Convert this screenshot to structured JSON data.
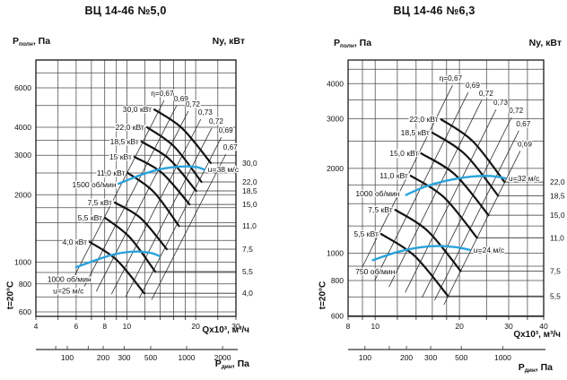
{
  "colors": {
    "curve_black": "#141414",
    "grid": "#4a4a4a",
    "border": "#1a1a1a",
    "fan_curve_blue": "#2aa2dc",
    "text": "#111111"
  },
  "charts": [
    {
      "title": "ВЦ 14-46 №5,0",
      "pressure_axis_label": {
        "base": "P",
        "sub": "полн",
        "rest": ", Па"
      },
      "power_axis_label": "Ny, кВт",
      "flow_axis_label": "Qx10³, м³/ч",
      "pdyn_axis_label": {
        "base": "P",
        "sub": "дин",
        "rest": ", Па"
      },
      "temperature_label": "t=20°C",
      "chart_data": {
        "type": "line",
        "x_name": "Q",
        "x_unit": "x10³ м³/ч",
        "y_name": "P полн",
        "y_unit": "Па",
        "xlim": [
          4,
          30
        ],
        "ylim": [
          573,
          7980
        ],
        "x_gridlines": [
          4,
          5,
          6,
          7,
          8,
          9,
          10,
          12,
          14,
          16,
          18,
          20,
          25,
          30
        ],
        "x_tick_labels": [
          4,
          6,
          8,
          10,
          20,
          30
        ],
        "y_gridlines": [
          600,
          700,
          800,
          900,
          1000,
          1250,
          1500,
          1750,
          2000,
          2500,
          3000,
          3500,
          4000,
          5000,
          6000,
          7000,
          8000
        ],
        "y_tick_labels": [
          600,
          800,
          1000,
          2000,
          3000,
          4000,
          6000
        ],
        "efficiency_lines": [
          {
            "label": "η=0,67",
            "k": 24.9,
            "q_range": [
              5.77,
              14.55
            ]
          },
          {
            "label": "0,69",
            "k": 18.34,
            "q_range": [
              6.52,
              16.5
            ]
          },
          {
            "label": "0,72",
            "k": 13.7,
            "q_range": [
              7.35,
              18.57
            ]
          },
          {
            "label": "0,73",
            "k": 9.8,
            "q_range": [
              8.57,
              21.06
            ]
          },
          {
            "label": "0,72",
            "k": 7.18,
            "q_range": [
              9.87,
              23.5
            ]
          },
          {
            "label": "0,69",
            "k": 5.38,
            "q_range": [
              11.33,
              25.9
            ]
          },
          {
            "label": "0,67",
            "k": 4.13,
            "q_range": [
              12.83,
              27.1
            ]
          }
        ],
        "power_curves": [
          {
            "label": "30,0 кВт",
            "ny_label": "30,0",
            "points": [
              [
                13.2,
                4800
              ],
              [
                17.5,
                3950
              ],
              [
                23.3,
                2770
              ]
            ]
          },
          {
            "label": "22,0 кВт",
            "ny_label": "22,0",
            "points": [
              [
                12.25,
                4000
              ],
              [
                16.1,
                3280
              ],
              [
                21.2,
                2280
              ]
            ]
          },
          {
            "label": "18,5 кВт",
            "ny_label": "18,5",
            "points": [
              [
                11.6,
                3450
              ],
              [
                15.3,
                2890
              ],
              [
                20.1,
                2080
              ]
            ]
          },
          {
            "label": "15 кВт",
            "ny_label": "15,0",
            "points": [
              [
                10.8,
                2950
              ],
              [
                14.25,
                2500
              ],
              [
                18.8,
                1810
              ]
            ]
          },
          {
            "label": "11,0 кВт",
            "ny_label": "11,0",
            "points": [
              [
                10.1,
                2500
              ],
              [
                13.1,
                2060
              ],
              [
                16.9,
                1450
              ]
            ]
          },
          {
            "label": "7,5 кВт",
            "ny_label": "7,5",
            "points": [
              [
                8.86,
                1845
              ],
              [
                11.5,
                1570
              ],
              [
                14.95,
                1143
              ]
            ]
          },
          {
            "label": "5,5 кВт",
            "ny_label": "5,5",
            "points": [
              [
                8.02,
                1578
              ],
              [
                10.3,
                1290
              ],
              [
                13.3,
                908
              ]
            ]
          },
          {
            "label": "4,0 кВт",
            "ny_label": "4,0",
            "points": [
              [
                6.88,
                1231
              ],
              [
                9.05,
                1020
              ],
              [
                11.9,
                727
              ]
            ]
          }
        ],
        "fan_curves": [
          {
            "rpm_label": "1500 об/мин",
            "u_label": "u=38 м/с",
            "points": [
              [
                9.2,
                2240
              ],
              [
                11.5,
                2450
              ],
              [
                14,
                2600
              ],
              [
                17,
                2670
              ],
              [
                20,
                2660
              ],
              [
                21.8,
                2590
              ]
            ],
            "rpm_label_pos": [
              7.2,
              2220
            ],
            "u_label_pos": "end"
          },
          {
            "rpm_label": "1000 об/мин",
            "u_label": "u=25 м/с",
            "points": [
              [
                6.0,
                950
              ],
              [
                7.5,
                1030
              ],
              [
                9,
                1090
              ],
              [
                11,
                1115
              ],
              [
                12.7,
                1100
              ],
              [
                13.9,
                1065
              ]
            ],
            "rpm_label_pos": [
              5.6,
              840
            ],
            "u_label_pos": [
              5.55,
              745
            ]
          }
        ],
        "pdyn_axis": {
          "range": [
            54.6,
            2590
          ],
          "tick_labels": [
            100,
            200,
            300,
            500,
            1000,
            2000
          ],
          "minor_ticks": [
            80,
            150
          ]
        }
      }
    },
    {
      "title": "ВЦ 14-46 №6,3",
      "pressure_axis_label": {
        "base": "P",
        "sub": "полн",
        "rest": ", Па"
      },
      "power_axis_label": "Ny, кВт",
      "flow_axis_label": "Qx10³, м³/ч",
      "pdyn_axis_label": {
        "base": "P",
        "sub": "дин",
        "rest": ", Па"
      },
      "temperature_label": "t=20°C",
      "chart_data": {
        "type": "line",
        "x_name": "Q",
        "x_unit": "x10³ м³/ч",
        "y_name": "P полн",
        "y_unit": "Па",
        "xlim": [
          8,
          40
        ],
        "ylim": [
          597,
          4849
        ],
        "x_gridlines": [
          8,
          9,
          10,
          12,
          14,
          16,
          18,
          20,
          25,
          30,
          35,
          40
        ],
        "x_tick_labels": [
          8,
          10,
          20,
          30,
          40
        ],
        "y_gridlines": [
          600,
          700,
          800,
          900,
          1000,
          1250,
          1500,
          1750,
          2000,
          2500,
          3000,
          3500,
          4000,
          4500
        ],
        "y_tick_labels": [
          600,
          800,
          1000,
          2000,
          3000,
          4000
        ],
        "efficiency_lines": [
          {
            "label": "η=0,67",
            "k": 11.04,
            "q_range": [
              8.8,
              18.9
            ]
          },
          {
            "label": "0,69",
            "k": 8.06,
            "q_range": [
              9.96,
              21.5
            ]
          },
          {
            "label": "0,72",
            "k": 6.05,
            "q_range": [
              11.2,
              24.0
            ]
          },
          {
            "label": "0,73",
            "k": 4.43,
            "q_range": [
              12.8,
              27.05
            ]
          },
          {
            "label": "0,72",
            "k": 3.22,
            "q_range": [
              14.7,
              30.7
            ]
          },
          {
            "label": "0,67",
            "k": 2.56,
            "q_range": [
              16.3,
              32.6
            ]
          },
          {
            "label": "0,69",
            "k": 2.12,
            "q_range": [
              17.6,
              33.0
            ]
          }
        ],
        "power_curves": [
          {
            "label": "22,0 кВт",
            "ny_label": "22,0",
            "points": [
              [
                17.2,
                2985
              ],
              [
                22.3,
                2500
              ],
              [
                29.0,
                1790
              ]
            ]
          },
          {
            "label": "18,5 кВт",
            "ny_label": "18,5",
            "points": [
              [
                16.0,
                2680
              ],
              [
                21.0,
                2240
              ],
              [
                27.5,
                1600
              ]
            ]
          },
          {
            "label": "15,0 кВт",
            "ny_label": "15,0",
            "points": [
              [
                14.6,
                2260
              ],
              [
                19.3,
                1900
              ],
              [
                25.4,
                1365
              ]
            ]
          },
          {
            "label": "11,0 кВт",
            "ny_label": "11,0",
            "points": [
              [
                13.4,
                1883
              ],
              [
                17.6,
                1580
              ],
              [
                23.1,
                1135
              ]
            ]
          },
          {
            "label": "7,5 кВт",
            "ny_label": "7,5",
            "points": [
              [
                11.8,
                1425
              ],
              [
                15.4,
                1200
              ],
              [
                20.2,
                865
              ]
            ]
          },
          {
            "label": "5,5 кВт",
            "ny_label": "5,5",
            "points": [
              [
                10.5,
                1170
              ],
              [
                13.8,
                980
              ],
              [
                18.2,
                705
              ]
            ]
          }
        ],
        "fan_curves": [
          {
            "rpm_label": "1000 об/мин",
            "u_label": "u=32 м/с",
            "points": [
              [
                12.9,
                1610
              ],
              [
                15,
                1720
              ],
              [
                18,
                1810
              ],
              [
                22,
                1870
              ],
              [
                26,
                1880
              ],
              [
                29.1,
                1845
              ]
            ],
            "rpm_label_pos": [
              10.2,
              1630
            ],
            "u_label_pos": "end"
          },
          {
            "rpm_label": "750 об/мин",
            "u_label": "u=24 м/с",
            "points": [
              [
                9.8,
                945
              ],
              [
                12,
                1010
              ],
              [
                14.5,
                1050
              ],
              [
                17,
                1062
              ],
              [
                19.5,
                1050
              ],
              [
                21.8,
                1028
              ]
            ],
            "rpm_label_pos": [
              10.0,
              860
            ],
            "u_label_pos": "end"
          }
        ],
        "pdyn_axis": {
          "range": [
            75.4,
            1980
          ],
          "tick_labels": [
            100,
            200,
            300,
            500,
            1000
          ],
          "minor_ticks": [
            150
          ]
        }
      }
    }
  ]
}
